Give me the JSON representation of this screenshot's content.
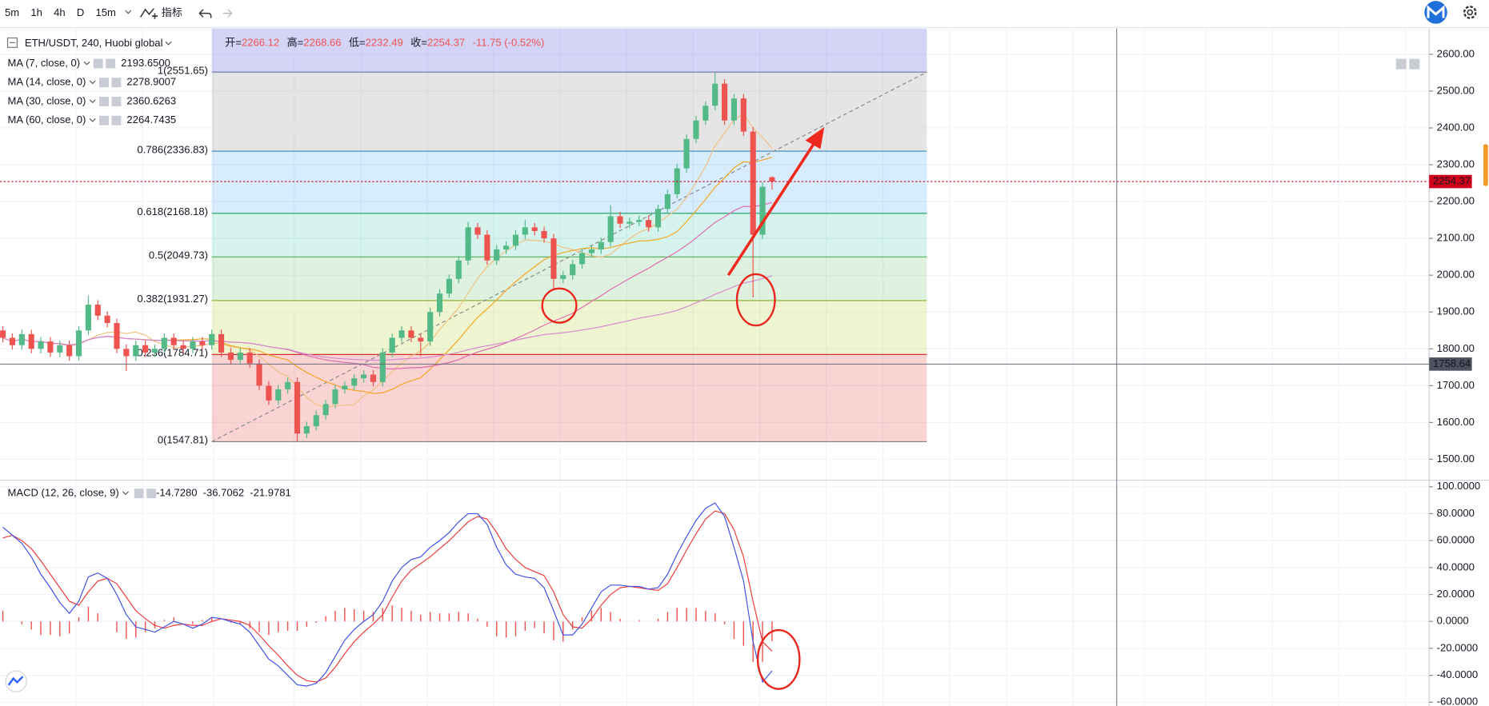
{
  "toolbar": {
    "intervals": [
      {
        "label": "5m",
        "color": "#131722"
      },
      {
        "label": "1h",
        "color": "#131722"
      },
      {
        "label": "4h",
        "color": "#2962ff"
      },
      {
        "label": "D",
        "color": "#131722"
      },
      {
        "label": "15m",
        "color": "#131722"
      }
    ],
    "indicators": "指标"
  },
  "chart_data": {
    "type": "candlestick",
    "symbol": "ETH/USDT, 240, Huobi global",
    "header": [
      {
        "label": "开="
      },
      {
        "label": "高="
      },
      {
        "label": "低="
      },
      {
        "label": "收="
      }
    ],
    "change": "-11.75 (-0.52%)",
    "down_color": "#ef5350",
    "up_color": "#53b987",
    "open": [
      1850,
      1830,
      1810,
      1840,
      1800,
      1820,
      1790,
      1810,
      1780,
      1850,
      1920,
      1890,
      1870,
      1800,
      1780,
      1810,
      1790,
      1800,
      1830,
      1810,
      1800,
      1820,
      1810,
      1840,
      1790,
      1770,
      1790,
      1760,
      1700,
      1660,
      1690,
      1710,
      1570,
      1590,
      1620,
      1650,
      1690,
      1700,
      1720,
      1730,
      1710,
      1790,
      1830,
      1850,
      1830,
      1820,
      1900,
      1950,
      1990,
      2040,
      2130,
      2110,
      2040,
      2070,
      2080,
      2110,
      2130,
      2120,
      2100,
      1990,
      2000,
      2030,
      2060,
      2070,
      2090,
      2160,
      2140,
      2145,
      2150,
      2130,
      2180,
      2220,
      2290,
      2370,
      2420,
      2460,
      2520,
      2420,
      2480,
      2390,
      2110,
      2266.12
    ],
    "high": [
      1862,
      1842,
      1852,
      1852,
      1832,
      1832,
      1822,
      1822,
      1862,
      1945,
      1932,
      1902,
      1882,
      1812,
      1822,
      1822,
      1812,
      1842,
      1842,
      1822,
      1832,
      1832,
      1852,
      1852,
      1802,
      1802,
      1802,
      1772,
      1712,
      1702,
      1722,
      1722,
      1602,
      1632,
      1662,
      1702,
      1712,
      1732,
      1742,
      1742,
      1802,
      1842,
      1862,
      1862,
      1842,
      1912,
      1962,
      2002,
      2052,
      2145,
      2142,
      2122,
      2082,
      2092,
      2122,
      2150,
      2142,
      2132,
      2112,
      2012,
      2042,
      2072,
      2082,
      2102,
      2190,
      2172,
      2157,
      2162,
      2162,
      2192,
      2232,
      2302,
      2382,
      2432,
      2472,
      2551,
      2532,
      2492,
      2492,
      2402,
      2252,
      2268.66
    ],
    "low": [
      1818,
      1798,
      1798,
      1788,
      1788,
      1778,
      1778,
      1768,
      1768,
      1838,
      1878,
      1858,
      1788,
      1740,
      1768,
      1778,
      1778,
      1788,
      1798,
      1788,
      1788,
      1798,
      1798,
      1778,
      1758,
      1758,
      1748,
      1688,
      1648,
      1648,
      1678,
      1548,
      1558,
      1578,
      1608,
      1638,
      1678,
      1688,
      1708,
      1698,
      1698,
      1778,
      1818,
      1818,
      1780,
      1808,
      1888,
      1938,
      1978,
      2028,
      2098,
      2028,
      2028,
      2058,
      2068,
      2098,
      2108,
      2088,
      1960,
      1978,
      1988,
      2018,
      2048,
      2058,
      2078,
      2128,
      2128,
      2133,
      2118,
      2118,
      2168,
      2208,
      2278,
      2358,
      2408,
      2448,
      2408,
      2408,
      2378,
      1940,
      2098,
      2232.49
    ],
    "close": [
      1830,
      1810,
      1840,
      1800,
      1820,
      1790,
      1810,
      1780,
      1850,
      1920,
      1890,
      1870,
      1800,
      1780,
      1810,
      1790,
      1800,
      1830,
      1810,
      1800,
      1820,
      1810,
      1840,
      1790,
      1770,
      1790,
      1760,
      1700,
      1660,
      1690,
      1710,
      1570,
      1590,
      1620,
      1650,
      1690,
      1700,
      1720,
      1730,
      1710,
      1790,
      1830,
      1850,
      1830,
      1820,
      1900,
      1950,
      1990,
      2040,
      2130,
      2110,
      2040,
      2070,
      2080,
      2110,
      2130,
      2120,
      2100,
      1990,
      2000,
      2030,
      2060,
      2070,
      2090,
      2160,
      2140,
      2145,
      2150,
      2130,
      2180,
      2220,
      2290,
      2370,
      2420,
      2460,
      2520,
      2420,
      2480,
      2390,
      2110,
      2240,
      2254.37
    ],
    "ylim": [
      1446,
      2670
    ],
    "yticks": [
      {
        "value": 1500,
        "label": "1500.00"
      },
      {
        "value": 1600,
        "label": "1600.00"
      },
      {
        "value": 1700,
        "label": "1700.00"
      },
      {
        "value": 1800,
        "label": "1800.00"
      },
      {
        "value": 1900,
        "label": "1900.00"
      },
      {
        "value": 2000,
        "label": "2000.00"
      },
      {
        "value": 2100,
        "label": "2100.00"
      },
      {
        "value": 2200,
        "label": "2200.00"
      },
      {
        "value": 2300,
        "label": "2300.00"
      },
      {
        "value": 2400,
        "label": "2400.00"
      },
      {
        "value": 2500,
        "label": "2500.00"
      },
      {
        "value": 2600,
        "label": "2600.00"
      }
    ],
    "crosshair": {
      "value": 1758.64
    },
    "ma": [
      {
        "name": "MA (7, close, 0)",
        "period": 7,
        "value_label": "2193.6500",
        "color": "#9e9e9e",
        "line_color": "#f0c080"
      },
      {
        "name": "MA (14, close, 0)",
        "period": 14,
        "value_label": "2278.9007",
        "color": "#f5a623",
        "line_color": "#f5a623"
      },
      {
        "name": "MA (30, close, 0)",
        "period": 30,
        "value_label": "2360.6263",
        "color": "#d6409f",
        "line_color": "#e06ab0"
      },
      {
        "name": "MA (60, close, 0)",
        "period": 60,
        "value_label": "2264.7435",
        "color": "#d6409f",
        "line_color": "#d78ad0"
      }
    ],
    "fib": [
      {
        "label": "1(2551.65)",
        "value": 2551.65,
        "color": "#7a7ab8",
        "fill": "rgba(120,120,230,0.32)"
      },
      {
        "label": "0.786(2336.83)",
        "value": 2336.83,
        "color": "#3d85b8",
        "fill": "rgba(160,160,160,0.28)"
      },
      {
        "label": "0.618(2168.18)",
        "value": 2168.18,
        "color": "#26a670",
        "fill": "rgba(33,150,243,0.18)"
      },
      {
        "label": "0.5(2049.73)",
        "value": 2049.73,
        "color": "#4caf50",
        "fill": "rgba(0,188,140,0.16)"
      },
      {
        "label": "0.382(1931.27)",
        "value": 1931.27,
        "color": "#8bb83a",
        "fill": "rgba(76,175,80,0.18)"
      },
      {
        "label": "0.236(1784.71)",
        "value": 1784.71,
        "color": "#d32f2f",
        "fill": "rgba(190,215,70,0.25)"
      },
      {
        "label": "0(1547.81)",
        "value": 1547.81,
        "color": "#808080",
        "fill": "rgba(235,80,80,0.25)"
      }
    ],
    "macd": {
      "name": "MACD (12, 26, close, 9)",
      "value_labels": [
        "-14.7280",
        "-36.7062",
        "-21.9781"
      ],
      "hist_color": "#ef5350",
      "dif_color": "#3f51e8",
      "dea_color": "#ef3b3b",
      "ylim": [
        -62.8,
        104.2
      ],
      "yticks": [
        {
          "value": -60,
          "label": "-60.0000"
        },
        {
          "value": -40,
          "label": "-40.0000"
        },
        {
          "value": -20,
          "label": "-20.0000"
        },
        {
          "value": 0,
          "label": "0.0000"
        },
        {
          "value": 20,
          "label": "20.0000"
        },
        {
          "value": 40,
          "label": "40.0000"
        },
        {
          "value": 60,
          "label": "60.0000"
        },
        {
          "value": 80,
          "label": "80.0000"
        },
        {
          "value": 100,
          "label": "100.0000"
        }
      ],
      "dif": [
        70,
        64,
        58,
        48,
        35,
        25,
        14,
        6,
        15,
        33,
        36,
        32,
        20,
        5,
        -4,
        -6,
        -8,
        -4,
        0,
        -2,
        -5,
        -2,
        3,
        2,
        0,
        -2,
        -8,
        -18,
        -28,
        -33,
        -40,
        -47,
        -48,
        -46,
        -38,
        -26,
        -14,
        -6,
        0,
        5,
        15,
        30,
        40,
        46,
        48,
        55,
        60,
        66,
        74,
        80,
        80,
        72,
        55,
        42,
        35,
        33,
        32,
        25,
        8,
        -10,
        -10,
        -2,
        10,
        22,
        27,
        27,
        26,
        26,
        24,
        25,
        35,
        50,
        63,
        75,
        84,
        88,
        78,
        55,
        30,
        -15,
        -45,
        -36.7062
      ],
      "dea": [
        62,
        64,
        60,
        54,
        45,
        35,
        25,
        15,
        12,
        22,
        30,
        32,
        28,
        18,
        8,
        2,
        -3,
        -5,
        -3,
        -2,
        -3,
        -3,
        0,
        2,
        1,
        0,
        -3,
        -10,
        -18,
        -25,
        -33,
        -40,
        -44,
        -45,
        -42,
        -34,
        -24,
        -15,
        -8,
        -2,
        5,
        18,
        30,
        38,
        43,
        48,
        54,
        60,
        67,
        74,
        78,
        76,
        66,
        54,
        46,
        40,
        37,
        34,
        22,
        5,
        -4,
        -5,
        2,
        12,
        20,
        25,
        26,
        25,
        24,
        23,
        28,
        40,
        53,
        65,
        76,
        82,
        80,
        68,
        48,
        15,
        -15,
        -21.9781
      ],
      "hist": [
        8,
        0,
        -2,
        -6,
        -10,
        -10,
        -11,
        -9,
        3,
        11,
        6,
        0,
        -8,
        -13,
        -12,
        -8,
        -5,
        1,
        3,
        0,
        -2,
        1,
        3,
        0,
        -1,
        -2,
        -5,
        -8,
        -10,
        -8,
        -7,
        -7,
        -4,
        -1,
        4,
        8,
        10,
        9,
        8,
        7,
        10,
        12,
        10,
        8,
        5,
        7,
        6,
        6,
        7,
        6,
        2,
        -4,
        -11,
        -12,
        -11,
        -7,
        -5,
        -9,
        -14,
        -15,
        -6,
        3,
        8,
        10,
        7,
        2,
        0,
        1,
        0,
        2,
        7,
        10,
        10,
        10,
        8,
        6,
        -2,
        -13,
        -18,
        -30,
        -30,
        -14.728
      ]
    }
  }
}
